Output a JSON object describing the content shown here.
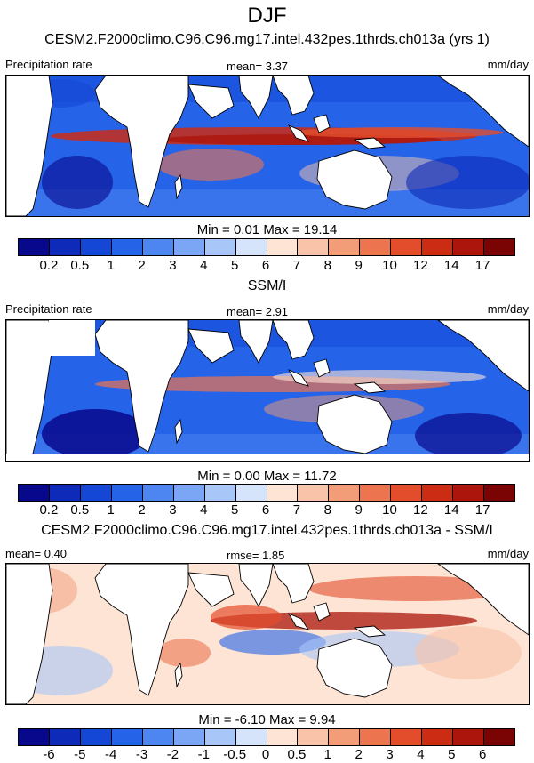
{
  "season": "DJF",
  "panels": [
    {
      "title": "CESM2.F2000climo.C96.C96.mg17.intel.432pes.1thrds.ch013a (yrs 1)",
      "left_label": "Precipitation rate",
      "stat_label": "mean=   3.37",
      "units": "mm/day",
      "minmax": "Min =   0.01 Max =  19.14",
      "field": "model-precip"
    },
    {
      "title": "SSM/I",
      "left_label": "Precipitation rate",
      "stat_label": "mean=   2.91",
      "units": "mm/day",
      "minmax": "Min =   0.00 Max =  11.72",
      "field": "obs-precip"
    },
    {
      "title": "CESM2.F2000climo.C96.C96.mg17.intel.432pes.1thrds.ch013a - SSM/I",
      "left_label": "mean=   0.40",
      "stat_label": "rmse=   1.85",
      "units": "mm/day",
      "minmax": "Min =  -6.10 Max =   9.94",
      "field": "difference"
    }
  ],
  "colorbars": {
    "precip": {
      "colors": [
        "#08088c",
        "#0d2ab8",
        "#1447d6",
        "#2563e8",
        "#4d86f0",
        "#7aa6f5",
        "#a8c6f8",
        "#d6e4fb",
        "#fde4d4",
        "#f8c3a8",
        "#f29c78",
        "#ec7550",
        "#e34d2c",
        "#cc2b14",
        "#ab150b",
        "#7a0303"
      ],
      "ticks": [
        "0.2",
        "0.5",
        "1",
        "2",
        "3",
        "4",
        "5",
        "6",
        "7",
        "8",
        "9",
        "10",
        "12",
        "14",
        "17"
      ]
    },
    "diff": {
      "colors": [
        "#08088c",
        "#0d2ab8",
        "#1447d6",
        "#2563e8",
        "#4d86f0",
        "#7aa6f5",
        "#a8c6f8",
        "#d6e4fb",
        "#fde4d4",
        "#f8c3a8",
        "#f29c78",
        "#ec7550",
        "#e34d2c",
        "#cc2b14",
        "#ab150b",
        "#7a0303"
      ],
      "ticks": [
        "-6",
        "-5",
        "-4",
        "-3",
        "-2",
        "-1",
        "-0.5",
        "0",
        "0.5",
        "1",
        "2",
        "3",
        "4",
        "5",
        "6"
      ]
    }
  }
}
